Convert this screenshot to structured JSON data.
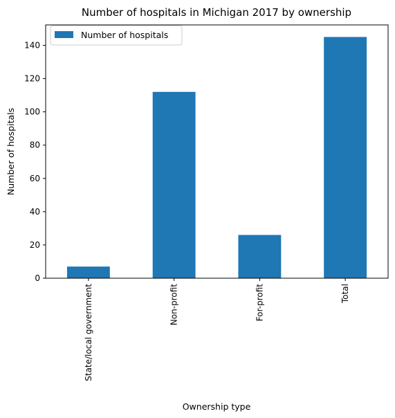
{
  "chart_data": {
    "type": "bar",
    "title": "Number of hospitals in Michigan 2017 by ownership",
    "xlabel": "Ownership type",
    "ylabel": "Number of hospitals",
    "categories": [
      "State/local government",
      "Non-profit",
      "For-profit",
      "Total"
    ],
    "series": [
      {
        "name": "Number of hospitals",
        "values": [
          7,
          112,
          26,
          145
        ],
        "color": "#1f77b4"
      }
    ],
    "ylim": [
      0,
      152.25
    ],
    "yticks": [
      0,
      20,
      40,
      60,
      80,
      100,
      120,
      140
    ],
    "grid": false,
    "legend": "top-left"
  }
}
